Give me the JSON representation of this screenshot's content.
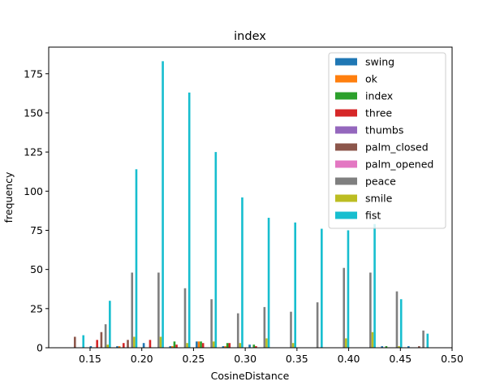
{
  "chart_data": {
    "type": "bar",
    "title": "index",
    "xlabel": "CosineDistance",
    "ylabel": "frequency",
    "xlim": [
      0.11,
      0.5
    ],
    "ylim": [
      0,
      192
    ],
    "xticks": [
      "0.15",
      "0.20",
      "0.25",
      "0.30",
      "0.35",
      "0.40",
      "0.45",
      "0.50"
    ],
    "yticks": [
      "0",
      "25",
      "50",
      "75",
      "100",
      "125",
      "150",
      "175"
    ],
    "bin_edges": [
      0.1215,
      0.1471,
      0.1727,
      0.1983,
      0.2239,
      0.2495,
      0.2751,
      0.3007,
      0.3263,
      0.3519,
      0.3775,
      0.4031,
      0.4287,
      0.4543,
      0.4799
    ],
    "legend_position": "top-right",
    "series": [
      {
        "name": "swing",
        "color": "#1f77b4",
        "values": [
          0,
          1,
          1,
          3,
          1,
          4,
          1,
          2,
          0,
          0,
          0,
          0,
          1,
          1
        ]
      },
      {
        "name": "ok",
        "color": "#ff7f0e",
        "values": [
          0,
          0,
          1,
          0,
          1,
          4,
          1,
          0,
          0,
          0,
          0,
          0,
          0,
          0
        ]
      },
      {
        "name": "index",
        "color": "#2ca02c",
        "values": [
          0,
          0,
          0,
          0,
          4,
          4,
          3,
          2,
          0,
          0,
          0,
          0,
          1,
          0
        ]
      },
      {
        "name": "three",
        "color": "#d62728",
        "values": [
          0,
          5,
          3,
          5,
          2,
          3,
          3,
          1,
          0,
          0,
          0,
          0,
          0,
          0
        ]
      },
      {
        "name": "thumbs",
        "color": "#9467bd",
        "values": [
          0,
          0,
          0,
          0,
          0,
          0,
          0,
          0,
          0,
          0,
          0,
          0,
          0,
          0
        ]
      },
      {
        "name": "palm_closed",
        "color": "#8c564b",
        "values": [
          7,
          10,
          5,
          0,
          0,
          0,
          0,
          0,
          0,
          0,
          0,
          0,
          0,
          1
        ]
      },
      {
        "name": "palm_opened",
        "color": "#e377c2",
        "values": [
          0,
          0,
          0,
          0,
          0,
          0,
          0,
          0,
          0,
          0,
          0,
          0,
          0,
          0
        ]
      },
      {
        "name": "peace",
        "color": "#7f7f7f",
        "values": [
          0,
          15,
          48,
          48,
          38,
          31,
          22,
          26,
          23,
          29,
          51,
          48,
          36,
          11
        ]
      },
      {
        "name": "smile",
        "color": "#bcbd22",
        "values": [
          0,
          2,
          7,
          7,
          3,
          4,
          3,
          6,
          3,
          0,
          6,
          10,
          1,
          0
        ]
      },
      {
        "name": "fist",
        "color": "#17becf",
        "values": [
          8,
          30,
          114,
          183,
          163,
          125,
          96,
          83,
          80,
          76,
          75,
          79,
          31,
          9
        ]
      }
    ],
    "grid": false
  }
}
